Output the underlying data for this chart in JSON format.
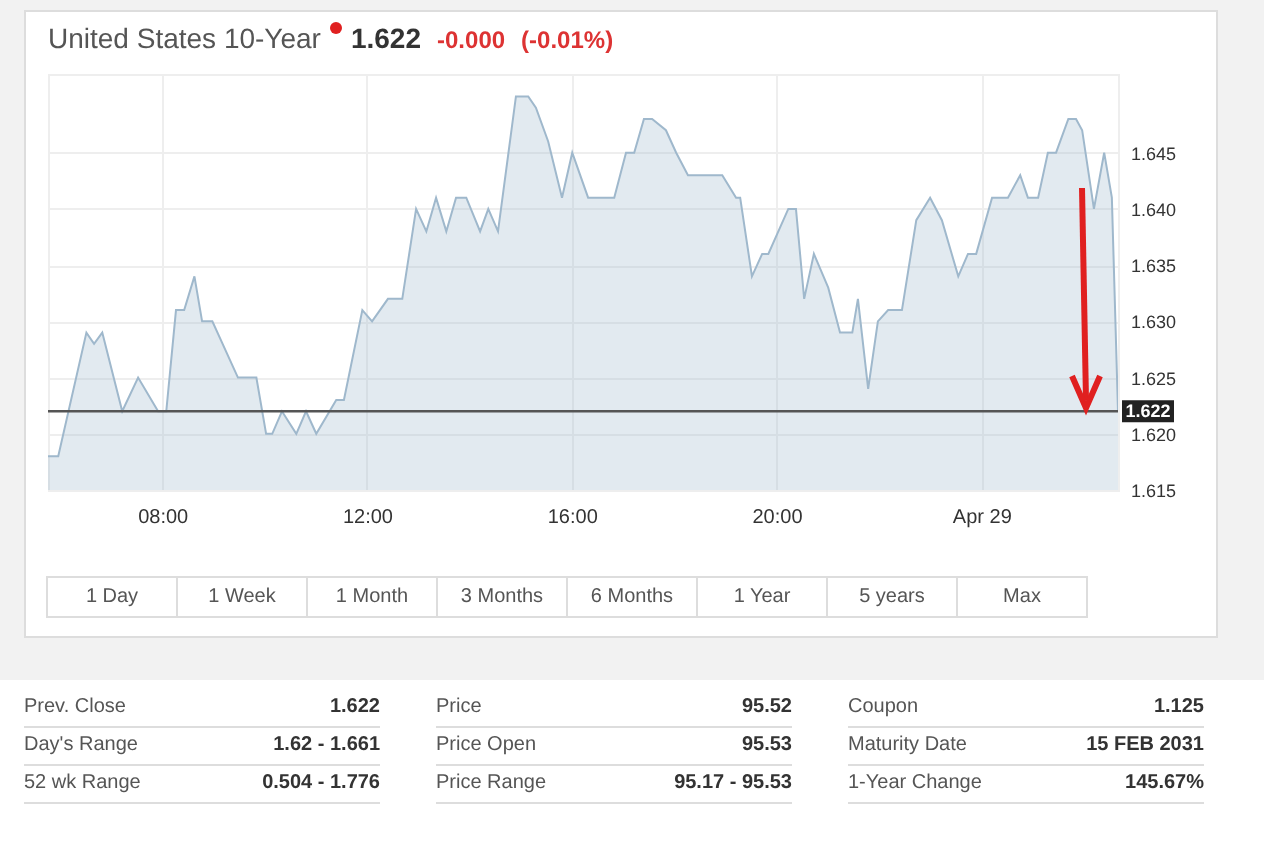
{
  "chart_data": {
    "type": "area",
    "title": "United States 10-Year",
    "annotations": [
      "1.622",
      "-0.000",
      "(-0.01%)",
      "1 Day",
      "1 Week",
      "1 Month",
      "3 Months",
      "6 Months",
      "1 Year",
      "5 years",
      "Max",
      "Prev. Close",
      "1.622",
      "Day's Range",
      "1.62 - 1.661",
      "52 wk Range",
      "0.504 - 1.776",
      "Price",
      "95.52",
      "Price Open",
      "95.53",
      "Price Range",
      "95.17 - 95.53",
      "Coupon",
      "1.125",
      "Maturity Date",
      "15 FEB 2031",
      "1-Year Change",
      "145.67%"
    ],
    "x": [
      5.77,
      5.97,
      6.52,
      6.67,
      6.83,
      7.22,
      7.53,
      7.92,
      8.08,
      8.27,
      8.43,
      8.63,
      8.78,
      8.98,
      9.48,
      9.84,
      10.03,
      10.15,
      10.34,
      10.62,
      10.81,
      11.01,
      11.4,
      11.55,
      11.91,
      12.1,
      12.41,
      12.69,
      12.96,
      13.16,
      13.35,
      13.55,
      13.74,
      13.94,
      14.21,
      14.37,
      14.56,
      14.91,
      15.15,
      15.3,
      15.54,
      15.81,
      16.01,
      16.32,
      16.83,
      17.06,
      17.22,
      17.41,
      17.57,
      17.84,
      18.04,
      18.27,
      18.94,
      19.21,
      19.29,
      19.52,
      19.72,
      19.84,
      20.23,
      20.38,
      20.54,
      20.73,
      21.01,
      21.24,
      21.48,
      21.59,
      21.79,
      21.98,
      22.18,
      22.45,
      22.73,
      23.0,
      23.23,
      23.55,
      23.74,
      23.9,
      24.21,
      24.52,
      24.76,
      24.91,
      25.11,
      25.3,
      25.46,
      25.7,
      25.85,
      25.97,
      26.2,
      26.4,
      26.55,
      26.67
    ],
    "series": [
      {
        "color": "#9fb8cc",
        "values": [
          1.618,
          1.618,
          1.629,
          1.628,
          1.629,
          1.622,
          1.625,
          1.622,
          1.622,
          1.631,
          1.631,
          1.634,
          1.63,
          1.63,
          1.625,
          1.625,
          1.62,
          1.62,
          1.622,
          1.62,
          1.622,
          1.62,
          1.623,
          1.623,
          1.631,
          1.63,
          1.632,
          1.632,
          1.64,
          1.638,
          1.641,
          1.638,
          1.641,
          1.641,
          1.638,
          1.64,
          1.638,
          1.65,
          1.65,
          1.649,
          1.646,
          1.641,
          1.645,
          1.641,
          1.641,
          1.645,
          1.645,
          1.648,
          1.648,
          1.647,
          1.645,
          1.643,
          1.643,
          1.641,
          1.641,
          1.634,
          1.636,
          1.636,
          1.64,
          1.64,
          1.632,
          1.636,
          1.633,
          1.629,
          1.629,
          1.632,
          1.624,
          1.63,
          1.631,
          1.631,
          1.639,
          1.641,
          1.639,
          1.634,
          1.636,
          1.636,
          1.641,
          1.641,
          1.643,
          1.641,
          1.641,
          1.645,
          1.645,
          1.648,
          1.648,
          1.647,
          1.64,
          1.645,
          1.641,
          1.622
        ]
      }
    ],
    "xlim": [
      5.77,
      26.67
    ],
    "xticks": [
      {
        "value": 8,
        "label": "08:00"
      },
      {
        "value": 12,
        "label": "12:00"
      },
      {
        "value": 16,
        "label": "16:00"
      },
      {
        "value": 20,
        "label": "20:00"
      },
      {
        "value": 24,
        "label": "Apr 29"
      }
    ],
    "ylim": [
      1.615,
      1.652
    ],
    "yticks": [
      1.615,
      {
        "value": 1.62,
        "label": "1.620"
      },
      1.625,
      {
        "value": 1.63,
        "label": "1.630"
      },
      1.635,
      {
        "value": 1.64,
        "label": "1.640"
      },
      1.645
    ],
    "ref_lines": [
      {
        "axis": "y",
        "value": 1.622,
        "label": "1.622",
        "color": "#555555"
      }
    ],
    "grid": true
  }
}
